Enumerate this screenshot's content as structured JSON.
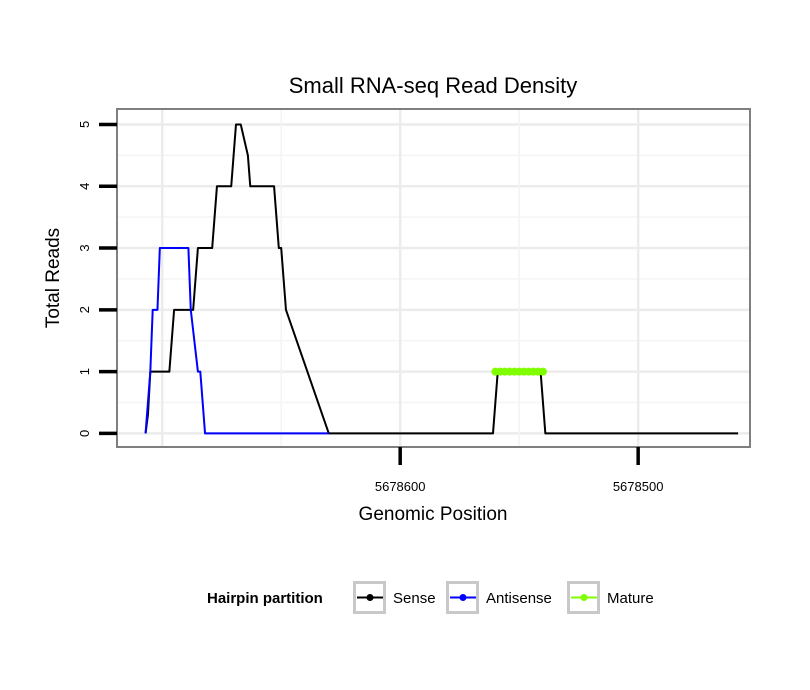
{
  "chart_data": {
    "type": "line",
    "title": "Small RNA-seq Read Density",
    "xlabel": "Genomic Position",
    "ylabel": "Total Reads",
    "x_reversed": true,
    "xlim": [
      5678453,
      5678719
    ],
    "ylim": [
      -0.22,
      5.25
    ],
    "x_ticks": [
      5678600,
      5678500
    ],
    "x_tick_labels": [
      "5678600",
      "5678500"
    ],
    "y_ticks": [
      0,
      1,
      2,
      3,
      4,
      5
    ],
    "y_tick_labels": [
      "0",
      "1",
      "2",
      "3",
      "4",
      "5"
    ],
    "grid": true,
    "legend": {
      "title": "Hairpin partition",
      "position": "bottom",
      "entries": [
        "Sense",
        "Antisense",
        "Mature"
      ]
    },
    "series": [
      {
        "name": "Sense",
        "color": "#000000",
        "x": [
          5678707,
          5678706,
          5678705,
          5678697,
          5678696,
          5678695,
          5678687,
          5678686,
          5678685,
          5678679,
          5678678,
          5678677,
          5678671,
          5678670,
          5678669,
          5678668,
          5678667,
          5678664,
          5678663,
          5678662,
          5678653,
          5678652,
          5678651,
          5678650,
          5678648,
          5678630,
          5678561,
          5678560,
          5678559,
          5678541,
          5678540,
          5678539,
          5678458
        ],
        "y": [
          0,
          0.3,
          1,
          1,
          1.5,
          2,
          2,
          2.5,
          3,
          3,
          3.5,
          4,
          4,
          4.5,
          5,
          5,
          5,
          4.5,
          4,
          4,
          4,
          3.5,
          3,
          3,
          2,
          0,
          0,
          0.5,
          1,
          1,
          0.5,
          0,
          0
        ]
      },
      {
        "name": "Antisense",
        "color": "#0000ff",
        "x": [
          5678707,
          5678705,
          5678704,
          5678702,
          5678701,
          5678689,
          5678688,
          5678685,
          5678684,
          5678683,
          5678682,
          5678630
        ],
        "y": [
          0,
          1,
          2,
          2,
          3,
          3,
          2,
          1,
          1,
          0.5,
          0,
          0
        ]
      },
      {
        "name": "Mature",
        "color": "#7fff00",
        "x": [
          5678560,
          5678558,
          5678556,
          5678554,
          5678552,
          5678550,
          5678548,
          5678546,
          5678544,
          5678542,
          5678540
        ],
        "y": [
          1,
          1,
          1,
          1,
          1,
          1,
          1,
          1,
          1,
          1,
          1
        ]
      }
    ]
  }
}
